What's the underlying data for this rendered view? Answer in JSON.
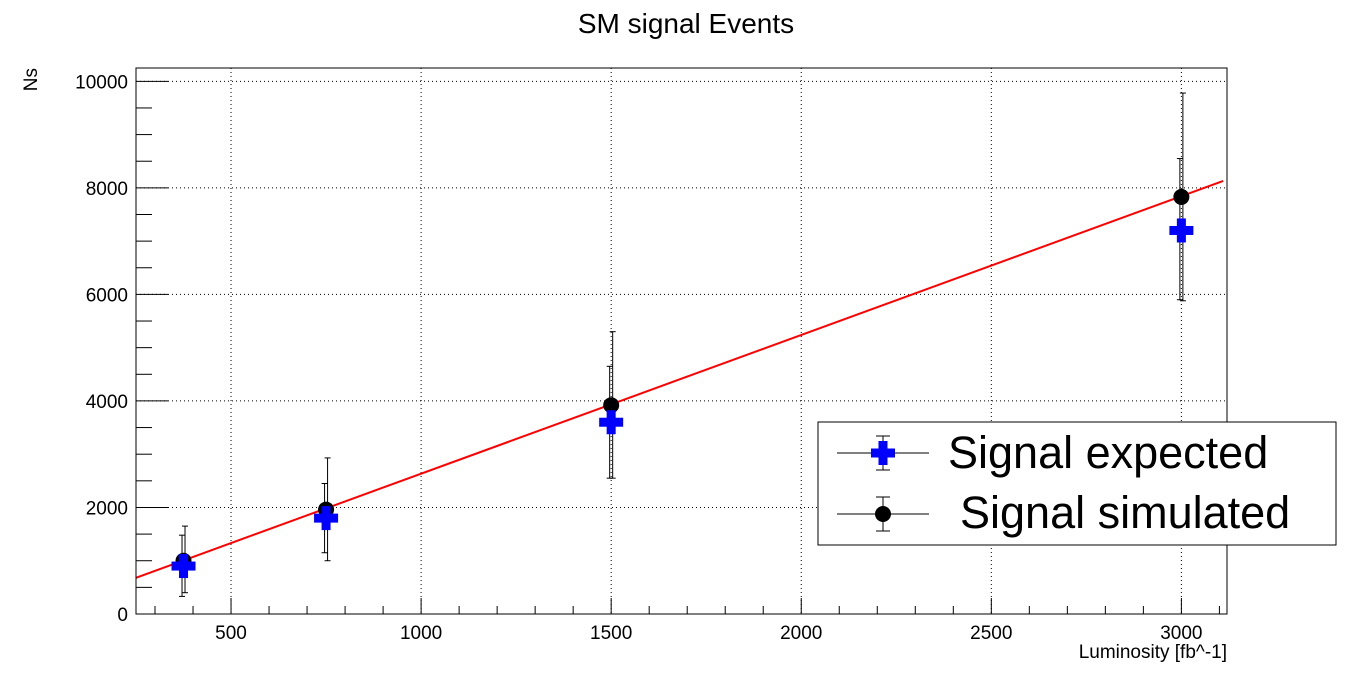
{
  "chart_data": {
    "type": "scatter",
    "title": "SM signal Events",
    "xlabel": "Luminosity [fb^-1]",
    "ylabel": "Ns",
    "xlim": [
      250,
      3120
    ],
    "ylim": [
      0,
      10250
    ],
    "grid": true,
    "legend": "right",
    "x_ticks": [
      500,
      1000,
      1500,
      2000,
      2500,
      3000
    ],
    "y_ticks": [
      0,
      2000,
      4000,
      6000,
      8000,
      10000
    ],
    "series": [
      {
        "name": "Signal expected",
        "marker": "cross",
        "color": "#0000ff",
        "points": [
          {
            "x": 375,
            "y": 900,
            "ylow": 330,
            "yhigh": 1480
          },
          {
            "x": 750,
            "y": 1800,
            "ylow": 1150,
            "yhigh": 2450
          },
          {
            "x": 1500,
            "y": 3600,
            "ylow": 2550,
            "yhigh": 4650
          },
          {
            "x": 3000,
            "y": 7200,
            "ylow": 5900,
            "yhigh": 8550
          }
        ]
      },
      {
        "name": "Signal simulated",
        "marker": "circle",
        "color": "#000000",
        "points": [
          {
            "x": 375,
            "y": 1000,
            "ylow": 400,
            "yhigh": 1650
          },
          {
            "x": 750,
            "y": 1960,
            "ylow": 1000,
            "yhigh": 2930
          },
          {
            "x": 1500,
            "y": 3920,
            "ylow": 2550,
            "yhigh": 5300
          },
          {
            "x": 3000,
            "y": 7830,
            "ylow": 5880,
            "yhigh": 9780
          }
        ]
      }
    ],
    "fit_line": {
      "color": "#ff0000",
      "x": [
        250,
        3110
      ],
      "y": [
        680,
        8130
      ]
    }
  }
}
